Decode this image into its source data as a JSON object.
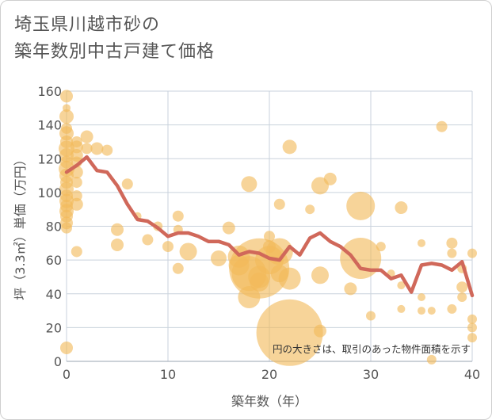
{
  "chart_data": {
    "type": "scatter",
    "title_lines": [
      "埼玉県川越市砂の",
      "築年数別中古戸建て価格"
    ],
    "xlabel": "築年数（年）",
    "ylabel": "坪（3.3㎡）単価（万円）",
    "xlim": [
      0,
      40
    ],
    "ylim": [
      0,
      160
    ],
    "x_ticks": [
      0,
      10,
      20,
      30,
      40
    ],
    "y_ticks": [
      0,
      20,
      40,
      60,
      80,
      100,
      120,
      140,
      160
    ],
    "grid": true,
    "annotation": "円の大きさは、取引のあった物件面積を示す",
    "colors": {
      "bubble": "#f2b95a",
      "line": "#d0685a",
      "grid": "#c9d2dc"
    },
    "points": [
      {
        "x": 0,
        "y": 157,
        "s": 8
      },
      {
        "x": 0,
        "y": 150,
        "s": 5
      },
      {
        "x": 0,
        "y": 145,
        "s": 9
      },
      {
        "x": 0,
        "y": 138,
        "s": 7
      },
      {
        "x": 0,
        "y": 135,
        "s": 9
      },
      {
        "x": 0,
        "y": 130,
        "s": 8
      },
      {
        "x": 0,
        "y": 126,
        "s": 10
      },
      {
        "x": 0,
        "y": 122,
        "s": 9
      },
      {
        "x": 0,
        "y": 118,
        "s": 8
      },
      {
        "x": 0,
        "y": 114,
        "s": 10
      },
      {
        "x": 0,
        "y": 110,
        "s": 9
      },
      {
        "x": 0,
        "y": 106,
        "s": 8
      },
      {
        "x": 0,
        "y": 102,
        "s": 9
      },
      {
        "x": 0,
        "y": 98,
        "s": 8
      },
      {
        "x": 0,
        "y": 95,
        "s": 9
      },
      {
        "x": 0,
        "y": 92,
        "s": 8
      },
      {
        "x": 0,
        "y": 89,
        "s": 9
      },
      {
        "x": 0,
        "y": 86,
        "s": 8
      },
      {
        "x": 0,
        "y": 82,
        "s": 8
      },
      {
        "x": 0,
        "y": 79,
        "s": 7
      },
      {
        "x": 0,
        "y": 8,
        "s": 8
      },
      {
        "x": 1,
        "y": 130,
        "s": 7
      },
      {
        "x": 1,
        "y": 127,
        "s": 8
      },
      {
        "x": 1,
        "y": 122,
        "s": 8
      },
      {
        "x": 1,
        "y": 118,
        "s": 7
      },
      {
        "x": 1,
        "y": 112,
        "s": 8
      },
      {
        "x": 1,
        "y": 106,
        "s": 7
      },
      {
        "x": 1,
        "y": 98,
        "s": 7
      },
      {
        "x": 1,
        "y": 93,
        "s": 8
      },
      {
        "x": 1,
        "y": 65,
        "s": 7
      },
      {
        "x": 2,
        "y": 133,
        "s": 8
      },
      {
        "x": 2,
        "y": 126,
        "s": 7
      },
      {
        "x": 3,
        "y": 126,
        "s": 8
      },
      {
        "x": 4,
        "y": 125,
        "s": 7
      },
      {
        "x": 5,
        "y": 78,
        "s": 8
      },
      {
        "x": 5,
        "y": 69,
        "s": 8
      },
      {
        "x": 6,
        "y": 105,
        "s": 7
      },
      {
        "x": 7,
        "y": 86,
        "s": 5
      },
      {
        "x": 8,
        "y": 72,
        "s": 7
      },
      {
        "x": 9,
        "y": 80,
        "s": 6
      },
      {
        "x": 10,
        "y": 68,
        "s": 7
      },
      {
        "x": 11,
        "y": 86,
        "s": 7
      },
      {
        "x": 11,
        "y": 78,
        "s": 6
      },
      {
        "x": 11,
        "y": 55,
        "s": 7
      },
      {
        "x": 12,
        "y": 65,
        "s": 11
      },
      {
        "x": 15,
        "y": 61,
        "s": 10
      },
      {
        "x": 16,
        "y": 79,
        "s": 8
      },
      {
        "x": 17,
        "y": 62,
        "s": 14
      },
      {
        "x": 17,
        "y": 57,
        "s": 13
      },
      {
        "x": 18,
        "y": 105,
        "s": 10
      },
      {
        "x": 18,
        "y": 52,
        "s": 22
      },
      {
        "x": 18,
        "y": 38,
        "s": 14
      },
      {
        "x": 19,
        "y": 55,
        "s": 38
      },
      {
        "x": 19,
        "y": 47,
        "s": 12
      },
      {
        "x": 19,
        "y": 50,
        "s": 14
      },
      {
        "x": 20,
        "y": 74,
        "s": 7
      },
      {
        "x": 20,
        "y": 68,
        "s": 8
      },
      {
        "x": 20,
        "y": 60,
        "s": 18
      },
      {
        "x": 21,
        "y": 93,
        "s": 7
      },
      {
        "x": 21,
        "y": 65,
        "s": 17
      },
      {
        "x": 21,
        "y": 52,
        "s": 11
      },
      {
        "x": 22,
        "y": 127,
        "s": 9
      },
      {
        "x": 22,
        "y": 49,
        "s": 14
      },
      {
        "x": 22,
        "y": 17,
        "s": 42
      },
      {
        "x": 24,
        "y": 90,
        "s": 6
      },
      {
        "x": 25,
        "y": 104,
        "s": 11
      },
      {
        "x": 25,
        "y": 51,
        "s": 11
      },
      {
        "x": 25,
        "y": 18,
        "s": 8
      },
      {
        "x": 26,
        "y": 108,
        "s": 8
      },
      {
        "x": 28,
        "y": 43,
        "s": 8
      },
      {
        "x": 29,
        "y": 92,
        "s": 18
      },
      {
        "x": 29,
        "y": 61,
        "s": 26
      },
      {
        "x": 30,
        "y": 27,
        "s": 6
      },
      {
        "x": 31,
        "y": 68,
        "s": 6
      },
      {
        "x": 32,
        "y": 52,
        "s": 5
      },
      {
        "x": 33,
        "y": 91,
        "s": 8
      },
      {
        "x": 33,
        "y": 45,
        "s": 5
      },
      {
        "x": 33,
        "y": 31,
        "s": 5
      },
      {
        "x": 35,
        "y": 70,
        "s": 5
      },
      {
        "x": 35,
        "y": 38,
        "s": 5
      },
      {
        "x": 35,
        "y": 30,
        "s": 5
      },
      {
        "x": 36,
        "y": 30,
        "s": 5
      },
      {
        "x": 36,
        "y": 1,
        "s": 6
      },
      {
        "x": 37,
        "y": 139,
        "s": 7
      },
      {
        "x": 38,
        "y": 70,
        "s": 7
      },
      {
        "x": 38,
        "y": 64,
        "s": 6
      },
      {
        "x": 38,
        "y": 31,
        "s": 6
      },
      {
        "x": 39,
        "y": 55,
        "s": 6
      },
      {
        "x": 39,
        "y": 44,
        "s": 7
      },
      {
        "x": 39,
        "y": 38,
        "s": 6
      },
      {
        "x": 40,
        "y": 64,
        "s": 6
      },
      {
        "x": 40,
        "y": 25,
        "s": 6
      },
      {
        "x": 40,
        "y": 20,
        "s": 6
      },
      {
        "x": 40,
        "y": 14,
        "s": 6
      }
    ],
    "trend_line": {
      "x": [
        0,
        1,
        2,
        3,
        4,
        5,
        6,
        7,
        8,
        9,
        10,
        11,
        12,
        13,
        14,
        15,
        16,
        17,
        18,
        19,
        20,
        21,
        22,
        23,
        24,
        25,
        26,
        27,
        28,
        29,
        30,
        31,
        32,
        33,
        34,
        35,
        36,
        37,
        38,
        39,
        40
      ],
      "y": [
        112,
        116,
        121,
        113,
        112,
        104,
        93,
        84,
        83,
        79,
        74,
        76,
        76,
        74,
        71,
        71,
        69,
        63,
        65,
        64,
        61,
        60,
        68,
        63,
        73,
        76,
        71,
        68,
        63,
        55,
        54,
        54,
        49,
        51,
        41,
        57,
        58,
        57,
        54,
        59,
        39
      ]
    }
  }
}
